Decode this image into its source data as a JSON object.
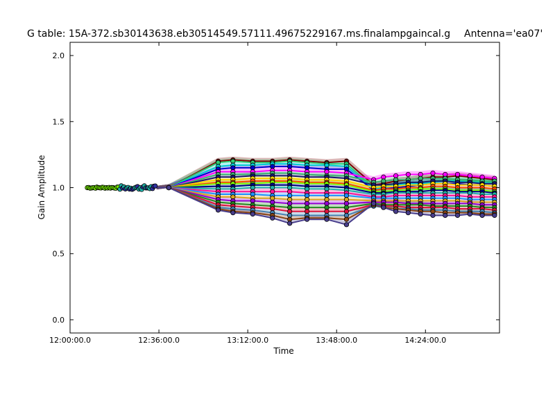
{
  "chart_data": {
    "type": "line",
    "title": "G table: 15A-372.sb30143638.eb30514549.57111.49675229167.ms.finalampgaincal.g",
    "antenna_label": "Antenna='ea07'",
    "xlabel": "Time",
    "ylabel": "Gain Amplitude",
    "xlim_minutes": [
      0,
      174
    ],
    "ylim": [
      -0.1,
      2.1
    ],
    "grid": false,
    "legend": "none",
    "x_ticks": [
      {
        "value": 0,
        "label": "12:00:00.0"
      },
      {
        "value": 36,
        "label": "12:36:00.0"
      },
      {
        "value": 72,
        "label": "13:12:00.0"
      },
      {
        "value": 108,
        "label": "13:48:00.0"
      },
      {
        "value": 144,
        "label": "14:24:00.0"
      }
    ],
    "y_ticks": [
      {
        "value": 0.0,
        "label": "0.0"
      },
      {
        "value": 0.5,
        "label": "0.5"
      },
      {
        "value": 1.0,
        "label": "1.0"
      },
      {
        "value": 1.5,
        "label": "1.5"
      },
      {
        "value": 2.0,
        "label": "2.0"
      }
    ],
    "x_scans": [
      40,
      60,
      66,
      74,
      82,
      89,
      96,
      104,
      112,
      123,
      127,
      132,
      137,
      142,
      147,
      152,
      157,
      162,
      167,
      172
    ],
    "early_scan_start": 7,
    "early_scan_end": 35,
    "series": [
      {
        "color": "#800000",
        "values": [
          1.0,
          1.2,
          1.21,
          1.2,
          1.2,
          1.21,
          1.2,
          1.19,
          1.2,
          1.02,
          1.03,
          1.05,
          1.06,
          1.07,
          1.08,
          1.08,
          1.09,
          1.08,
          1.07,
          1.06
        ]
      },
      {
        "color": "#2ecc71",
        "values": [
          1.0,
          1.19,
          1.2,
          1.19,
          1.19,
          1.2,
          1.19,
          1.18,
          1.18,
          1.0,
          1.01,
          1.02,
          1.03,
          1.04,
          1.05,
          1.06,
          1.06,
          1.05,
          1.05,
          1.04
        ]
      },
      {
        "color": "#00ced1",
        "values": [
          1.0,
          1.16,
          1.17,
          1.17,
          1.18,
          1.18,
          1.17,
          1.17,
          1.16,
          0.99,
          1.0,
          1.02,
          1.03,
          1.03,
          1.04,
          1.05,
          1.05,
          1.04,
          1.04,
          1.03
        ]
      },
      {
        "color": "#0000cd",
        "values": [
          1.0,
          1.14,
          1.15,
          1.15,
          1.16,
          1.16,
          1.15,
          1.14,
          1.14,
          0.98,
          0.99,
          1.0,
          1.01,
          1.02,
          1.03,
          1.03,
          1.03,
          1.02,
          1.02,
          1.01
        ]
      },
      {
        "color": "#ff00ff",
        "values": [
          1.0,
          1.12,
          1.12,
          1.12,
          1.13,
          1.13,
          1.12,
          1.12,
          1.11,
          1.06,
          1.08,
          1.09,
          1.1,
          1.1,
          1.11,
          1.1,
          1.1,
          1.09,
          1.08,
          1.07
        ]
      },
      {
        "color": "#3cb371",
        "values": [
          1.0,
          1.1,
          1.1,
          1.1,
          1.11,
          1.11,
          1.1,
          1.09,
          1.09,
          1.04,
          1.05,
          1.06,
          1.06,
          1.07,
          1.07,
          1.07,
          1.06,
          1.06,
          1.05,
          1.05
        ]
      },
      {
        "color": "#191970",
        "values": [
          1.0,
          1.08,
          1.08,
          1.09,
          1.09,
          1.09,
          1.08,
          1.08,
          1.07,
          1.02,
          1.02,
          1.03,
          1.04,
          1.04,
          1.05,
          1.05,
          1.04,
          1.04,
          1.03,
          1.03
        ]
      },
      {
        "color": "#ffd700",
        "values": [
          1.0,
          1.06,
          1.06,
          1.07,
          1.07,
          1.07,
          1.06,
          1.06,
          1.05,
          1.0,
          1.01,
          1.01,
          1.02,
          1.02,
          1.03,
          1.03,
          1.02,
          1.02,
          1.02,
          1.01
        ]
      },
      {
        "color": "#ff4500",
        "values": [
          1.0,
          1.04,
          1.04,
          1.05,
          1.05,
          1.05,
          1.04,
          1.04,
          1.03,
          0.98,
          0.99,
          0.99,
          1.0,
          1.0,
          1.01,
          1.01,
          1.0,
          1.0,
          1.0,
          0.99
        ]
      },
      {
        "color": "#7fff00",
        "values": [
          1.0,
          1.03,
          1.03,
          1.03,
          1.04,
          1.04,
          1.03,
          1.03,
          1.02,
          0.97,
          0.97,
          0.98,
          0.98,
          0.99,
          0.99,
          0.99,
          0.98,
          0.98,
          0.98,
          0.97
        ]
      },
      {
        "color": "#000080",
        "values": [
          1.0,
          1.01,
          1.01,
          1.02,
          1.02,
          1.02,
          1.01,
          1.01,
          1.0,
          0.96,
          0.96,
          0.97,
          0.97,
          0.97,
          0.98,
          0.98,
          0.97,
          0.97,
          0.97,
          0.96
        ]
      },
      {
        "color": "#20b2aa",
        "values": [
          1.0,
          0.99,
          0.99,
          1.0,
          1.0,
          1.0,
          0.99,
          0.99,
          0.98,
          0.95,
          0.95,
          0.96,
          0.96,
          0.96,
          0.96,
          0.96,
          0.96,
          0.96,
          0.95,
          0.95
        ]
      },
      {
        "color": "#ff1493",
        "values": [
          1.0,
          0.97,
          0.97,
          0.97,
          0.97,
          0.97,
          0.96,
          0.96,
          0.96,
          0.93,
          0.93,
          0.94,
          0.94,
          0.94,
          0.94,
          0.94,
          0.94,
          0.93,
          0.93,
          0.93
        ]
      },
      {
        "color": "#1e90ff",
        "values": [
          1.0,
          0.95,
          0.95,
          0.95,
          0.94,
          0.94,
          0.94,
          0.94,
          0.94,
          0.92,
          0.92,
          0.92,
          0.92,
          0.92,
          0.92,
          0.92,
          0.92,
          0.91,
          0.91,
          0.91
        ]
      },
      {
        "color": "#daa520",
        "values": [
          1.0,
          0.93,
          0.93,
          0.92,
          0.92,
          0.91,
          0.91,
          0.91,
          0.91,
          0.9,
          0.9,
          0.9,
          0.9,
          0.9,
          0.9,
          0.9,
          0.9,
          0.89,
          0.89,
          0.89
        ]
      },
      {
        "color": "#9400d3",
        "values": [
          1.0,
          0.91,
          0.9,
          0.9,
          0.89,
          0.88,
          0.88,
          0.88,
          0.88,
          0.89,
          0.89,
          0.89,
          0.88,
          0.88,
          0.88,
          0.88,
          0.88,
          0.88,
          0.87,
          0.87
        ]
      },
      {
        "color": "#228b22",
        "values": [
          1.0,
          0.89,
          0.88,
          0.87,
          0.86,
          0.85,
          0.85,
          0.85,
          0.85,
          0.88,
          0.87,
          0.87,
          0.87,
          0.87,
          0.86,
          0.86,
          0.86,
          0.86,
          0.85,
          0.85
        ]
      },
      {
        "color": "#dc143c",
        "values": [
          1.0,
          0.87,
          0.86,
          0.85,
          0.84,
          0.82,
          0.82,
          0.82,
          0.82,
          0.87,
          0.86,
          0.86,
          0.85,
          0.85,
          0.85,
          0.85,
          0.84,
          0.84,
          0.84,
          0.83
        ]
      },
      {
        "color": "#4682b4",
        "values": [
          1.0,
          0.85,
          0.84,
          0.83,
          0.81,
          0.79,
          0.79,
          0.79,
          0.79,
          0.86,
          0.85,
          0.84,
          0.84,
          0.83,
          0.83,
          0.83,
          0.82,
          0.82,
          0.82,
          0.81
        ]
      },
      {
        "color": "#8b4513",
        "values": [
          1.0,
          0.84,
          0.82,
          0.81,
          0.79,
          0.76,
          0.77,
          0.77,
          0.76,
          0.87,
          0.85,
          0.84,
          0.83,
          0.82,
          0.82,
          0.81,
          0.81,
          0.81,
          0.8,
          0.8
        ]
      },
      {
        "color": "#483d8b",
        "values": [
          1.0,
          0.83,
          0.81,
          0.8,
          0.77,
          0.73,
          0.76,
          0.76,
          0.72,
          0.88,
          0.85,
          0.82,
          0.81,
          0.8,
          0.79,
          0.79,
          0.79,
          0.8,
          0.79,
          0.79
        ]
      }
    ]
  }
}
